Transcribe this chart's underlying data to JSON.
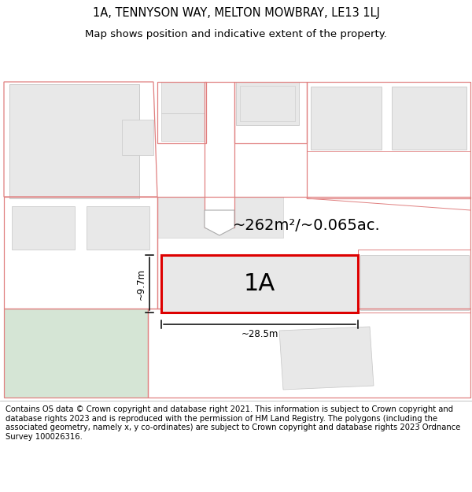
{
  "title_line1": "1A, TENNYSON WAY, MELTON MOWBRAY, LE13 1LJ",
  "title_line2": "Map shows position and indicative extent of the property.",
  "footer_text": "Contains OS data © Crown copyright and database right 2021. This information is subject to Crown copyright and database rights 2023 and is reproduced with the permission of HM Land Registry. The polygons (including the associated geometry, namely x, y co-ordinates) are subject to Crown copyright and database rights 2023 Ordnance Survey 100026316.",
  "map_bg": "#ffffff",
  "building_fill": "#e8e8e8",
  "building_edge": "#c8c8c8",
  "highlight_fill": "#e8e8e8",
  "highlight_edge": "#dd0000",
  "parcel_edge": "#e08080",
  "green_fill": "#d5e5d5",
  "area_label": "~262m²/~0.065ac.",
  "width_label": "~28.5m",
  "height_label": "~9.7m",
  "property_label": "1A",
  "title_fontsize": 10.5,
  "subtitle_fontsize": 9.5,
  "footer_fontsize": 7.2,
  "area_label_fontsize": 14,
  "property_label_fontsize": 22,
  "dim_label_fontsize": 8.5
}
